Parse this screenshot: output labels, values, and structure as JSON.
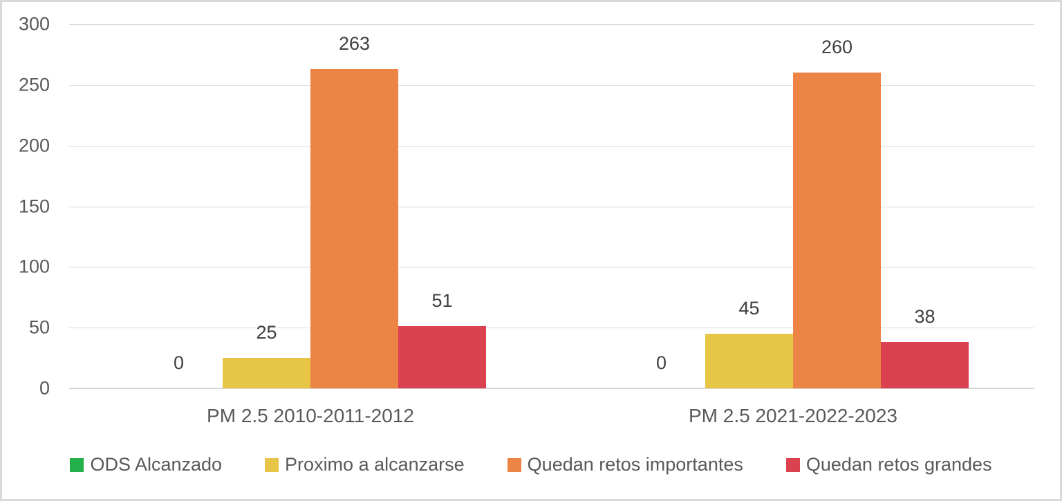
{
  "chart_data": {
    "type": "bar",
    "title": "",
    "xlabel": "",
    "ylabel": "",
    "categories": [
      "PM 2.5 2010-2011-2012",
      "PM 2.5 2021-2022-2023"
    ],
    "series": [
      {
        "name": "ODS Alcanzado",
        "color": "#23B04A",
        "values": [
          0,
          0
        ]
      },
      {
        "name": "Proximo a alcanzarse",
        "color": "#E7C547",
        "values": [
          25,
          45
        ]
      },
      {
        "name": "Quedan retos importantes",
        "color": "#EB8445",
        "values": [
          263,
          260
        ]
      },
      {
        "name": "Quedan retos grandes",
        "color": "#DB4250",
        "values": [
          51,
          38
        ]
      }
    ],
    "ylim": [
      0,
      300
    ],
    "yticks": [
      0,
      50,
      100,
      150,
      200,
      250,
      300
    ],
    "grid": true,
    "data_labels": true,
    "legend_position": "bottom"
  },
  "colors": {
    "gridline": "#D9D9D9",
    "axis_text": "#595959",
    "data_label_text": "#404040",
    "frame_border": "#D9D9D9",
    "background": "#FFFFFF"
  }
}
